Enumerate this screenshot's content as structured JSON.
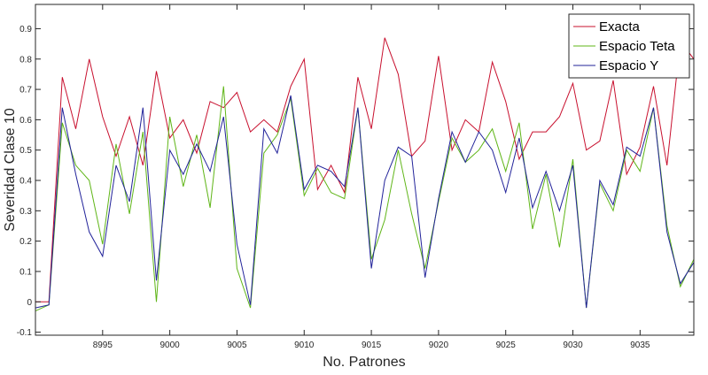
{
  "chart_data": {
    "type": "line",
    "title": "",
    "xlabel": "No. Patrones",
    "ylabel": "Severidad Clase 10",
    "xlim": [
      8990,
      9039
    ],
    "ylim": [
      -0.11,
      0.98
    ],
    "xticks": [
      8995,
      9000,
      9005,
      9010,
      9015,
      9020,
      9025,
      9030,
      9035
    ],
    "yticks": [
      -0.1,
      0,
      0.1,
      0.2,
      0.3,
      0.4,
      0.5,
      0.6,
      0.7,
      0.8,
      0.9
    ],
    "ytick_labels": [
      "-0.1",
      "0",
      "0.1",
      "0.2",
      "0.3",
      "0.4",
      "0.5",
      "0.6",
      "0.7",
      "0.8",
      "0.9"
    ],
    "grid": false,
    "legend_position": "top-right",
    "x": [
      8990,
      8991,
      8992,
      8993,
      8994,
      8995,
      8996,
      8997,
      8998,
      8999,
      9000,
      9001,
      9002,
      9003,
      9004,
      9005,
      9006,
      9007,
      9008,
      9009,
      9010,
      9011,
      9012,
      9013,
      9014,
      9015,
      9016,
      9017,
      9018,
      9019,
      9020,
      9021,
      9022,
      9023,
      9024,
      9025,
      9026,
      9027,
      9028,
      9029,
      9030,
      9031,
      9032,
      9033,
      9034,
      9035,
      9036,
      9037,
      9038,
      9039
    ],
    "series": [
      {
        "name": "Exacta",
        "color": "#c8102e",
        "values": [
          0.0,
          0.0,
          0.74,
          0.57,
          0.8,
          0.61,
          0.48,
          0.61,
          0.45,
          0.76,
          0.54,
          0.6,
          0.49,
          0.66,
          0.64,
          0.69,
          0.56,
          0.6,
          0.56,
          0.71,
          0.8,
          0.37,
          0.45,
          0.36,
          0.74,
          0.57,
          0.87,
          0.75,
          0.48,
          0.53,
          0.81,
          0.5,
          0.6,
          0.56,
          0.79,
          0.66,
          0.47,
          0.56,
          0.56,
          0.61,
          0.72,
          0.5,
          0.53,
          0.73,
          0.42,
          0.51,
          0.71,
          0.45,
          0.86,
          0.8
        ]
      },
      {
        "name": "Espacio Teta",
        "color": "#5fb517",
        "values": [
          -0.03,
          -0.01,
          0.59,
          0.45,
          0.4,
          0.19,
          0.52,
          0.29,
          0.56,
          0.0,
          0.61,
          0.38,
          0.55,
          0.31,
          0.71,
          0.11,
          -0.02,
          0.49,
          0.55,
          0.67,
          0.35,
          0.44,
          0.36,
          0.34,
          0.64,
          0.14,
          0.27,
          0.5,
          0.29,
          0.11,
          0.33,
          0.54,
          0.46,
          0.5,
          0.57,
          0.43,
          0.59,
          0.24,
          0.42,
          0.18,
          0.47,
          -0.02,
          0.39,
          0.3,
          0.5,
          0.43,
          0.64,
          0.25,
          0.05,
          0.14
        ]
      },
      {
        "name": "Espacio Y",
        "color": "#22239a",
        "values": [
          -0.02,
          -0.01,
          0.64,
          0.42,
          0.23,
          0.15,
          0.45,
          0.33,
          0.64,
          0.07,
          0.5,
          0.42,
          0.52,
          0.43,
          0.61,
          0.19,
          -0.01,
          0.57,
          0.49,
          0.68,
          0.37,
          0.45,
          0.43,
          0.38,
          0.64,
          0.11,
          0.4,
          0.51,
          0.48,
          0.08,
          0.34,
          0.56,
          0.46,
          0.56,
          0.5,
          0.36,
          0.54,
          0.31,
          0.43,
          0.3,
          0.45,
          -0.02,
          0.4,
          0.32,
          0.51,
          0.48,
          0.64,
          0.23,
          0.06,
          0.13
        ]
      }
    ]
  }
}
